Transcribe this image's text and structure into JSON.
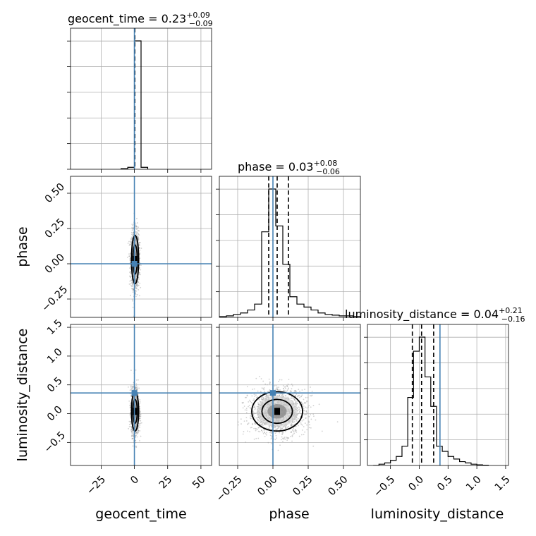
{
  "chart_data": {
    "type": "corner",
    "parameters": [
      "geocent_time",
      "phase",
      "luminosity_distance"
    ],
    "axis_labels": {
      "geocent_time": "geocent_time",
      "phase": "phase",
      "luminosity_distance": "luminosity_distance"
    },
    "ranges": {
      "geocent_time": [
        -48,
        58
      ],
      "phase": [
        -0.38,
        0.62
      ],
      "luminosity_distance": [
        -0.9,
        1.55
      ]
    },
    "ticks": {
      "geocent_time": [
        -25,
        0,
        25,
        50
      ],
      "phase": [
        -0.25,
        0.0,
        0.25,
        0.5
      ],
      "luminosity_distance": [
        -0.5,
        0.0,
        0.5,
        1.0,
        1.5
      ]
    },
    "tick_labels": {
      "geocent_time": [
        "−25",
        "0",
        "25",
        "50"
      ],
      "phase": [
        "−0.25",
        "0.00",
        "0.25",
        "0.50"
      ],
      "luminosity_distance": [
        "−0.5",
        "0.0",
        "0.5",
        "1.0",
        "1.5"
      ]
    },
    "truths": {
      "geocent_time": 0.0,
      "phase": 0.0,
      "luminosity_distance": 0.36
    },
    "titles": {
      "geocent_time": {
        "name": "geocent_time",
        "median": "0.23",
        "plus": "+0.09",
        "minus": "−0.09"
      },
      "phase": {
        "name": "phase",
        "median": "0.03",
        "plus": "+0.08",
        "minus": "−0.06"
      },
      "luminosity_distance": {
        "name": "luminosity_distance",
        "median": "0.04",
        "plus": "+0.21",
        "minus": "−0.16"
      }
    },
    "quantiles": {
      "geocent_time": [
        0.14,
        0.23,
        0.32
      ],
      "phase": [
        -0.03,
        0.03,
        0.11
      ],
      "luminosity_distance": [
        -0.12,
        0.04,
        0.25
      ]
    },
    "histograms": {
      "geocent_time": {
        "bin_edges": [
          -10,
          -5,
          0,
          5,
          10
        ],
        "heights": [
          0.005,
          0.015,
          1.0,
          0.015
        ]
      },
      "phase": {
        "bin_edges": [
          -0.38,
          -0.33,
          -0.28,
          -0.23,
          -0.18,
          -0.13,
          -0.08,
          -0.03,
          0.02,
          0.07,
          0.12,
          0.17,
          0.22,
          0.27,
          0.32,
          0.37,
          0.42,
          0.47,
          0.52,
          0.57,
          0.62
        ],
        "heights": [
          0.005,
          0.01,
          0.02,
          0.03,
          0.05,
          0.09,
          0.58,
          0.87,
          0.62,
          0.36,
          0.14,
          0.09,
          0.07,
          0.05,
          0.03,
          0.02,
          0.015,
          0.01,
          0.01,
          0.005
        ]
      },
      "luminosity_distance": {
        "bin_edges": [
          -0.8,
          -0.7,
          -0.6,
          -0.5,
          -0.4,
          -0.3,
          -0.2,
          -0.1,
          0.0,
          0.1,
          0.2,
          0.3,
          0.4,
          0.5,
          0.6,
          0.7,
          0.8,
          0.9,
          1.0,
          1.1,
          1.2
        ],
        "heights": [
          0.0,
          0.01,
          0.02,
          0.04,
          0.07,
          0.15,
          0.53,
          0.89,
          1.0,
          0.69,
          0.46,
          0.15,
          0.11,
          0.07,
          0.05,
          0.03,
          0.02,
          0.01,
          0.005,
          0.002
        ]
      }
    },
    "scatter_2d": {
      "geocent_time_phase": {
        "center": [
          0.5,
          0.03
        ],
        "spread": [
          1.5,
          0.1
        ]
      },
      "geocent_time_luminosity_distance": {
        "center": [
          0.5,
          0.04
        ],
        "spread": [
          1.5,
          0.2
        ]
      },
      "phase_luminosity_distance": {
        "center": [
          0.03,
          0.04
        ],
        "spread": [
          0.1,
          0.2
        ]
      }
    },
    "contour_levels": 2,
    "grid": true,
    "truth_color": "#4682b4"
  }
}
